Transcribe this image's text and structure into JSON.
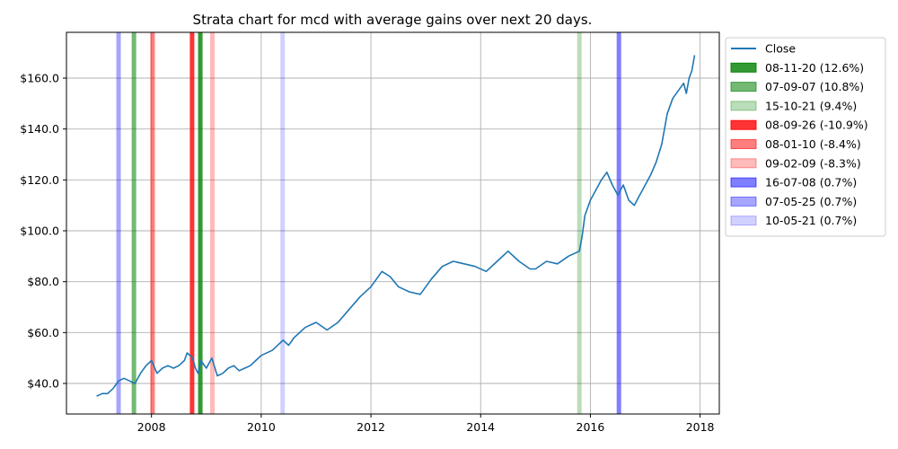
{
  "chart_data": {
    "type": "line",
    "title": "Strata chart for mcd with average gains over next 20 days.",
    "xlabel": "",
    "ylabel": "",
    "xlim": [
      2006.45,
      2018.35
    ],
    "ylim": [
      28,
      178
    ],
    "x_ticks": [
      {
        "value": 2008,
        "label": "2008"
      },
      {
        "value": 2010,
        "label": "2010"
      },
      {
        "value": 2012,
        "label": "2012"
      },
      {
        "value": 2014,
        "label": "2014"
      },
      {
        "value": 2016,
        "label": "2016"
      },
      {
        "value": 2018,
        "label": "2018"
      }
    ],
    "y_ticks": [
      {
        "value": 40,
        "label": "$40.0"
      },
      {
        "value": 60,
        "label": "$60.0"
      },
      {
        "value": 80,
        "label": "$80.0"
      },
      {
        "value": 100,
        "label": "$100.0"
      },
      {
        "value": 120,
        "label": "$120.0"
      },
      {
        "value": 140,
        "label": "$140.0"
      },
      {
        "value": 160,
        "label": "$160.0"
      }
    ],
    "grid": true,
    "legend_position": "outside-right-top",
    "series": [
      {
        "name": "Close",
        "color": "#1f77b4",
        "x": [
          2007.0,
          2007.1,
          2007.2,
          2007.3,
          2007.4,
          2007.5,
          2007.6,
          2007.7,
          2007.8,
          2007.9,
          2008.0,
          2008.1,
          2008.2,
          2008.3,
          2008.4,
          2008.5,
          2008.6,
          2008.65,
          2008.75,
          2008.8,
          2008.85,
          2008.9,
          2009.0,
          2009.1,
          2009.2,
          2009.3,
          2009.4,
          2009.5,
          2009.6,
          2009.7,
          2009.8,
          2009.9,
          2010.0,
          2010.2,
          2010.4,
          2010.5,
          2010.6,
          2010.8,
          2011.0,
          2011.2,
          2011.4,
          2011.6,
          2011.8,
          2012.0,
          2012.2,
          2012.35,
          2012.5,
          2012.7,
          2012.9,
          2013.1,
          2013.3,
          2013.5,
          2013.7,
          2013.9,
          2014.1,
          2014.3,
          2014.5,
          2014.7,
          2014.9,
          2015.0,
          2015.2,
          2015.4,
          2015.6,
          2015.8,
          2015.85,
          2015.9,
          2016.0,
          2016.1,
          2016.2,
          2016.3,
          2016.4,
          2016.5,
          2016.6,
          2016.7,
          2016.8,
          2016.9,
          2017.0,
          2017.1,
          2017.2,
          2017.3,
          2017.4,
          2017.5,
          2017.6,
          2017.7,
          2017.75,
          2017.8,
          2017.85,
          2017.9
        ],
        "values": [
          35,
          36,
          36,
          38,
          41,
          42,
          41,
          40,
          44,
          47,
          49,
          44,
          46,
          47,
          46,
          47,
          49,
          52,
          50,
          46,
          44,
          49,
          46,
          50,
          43,
          44,
          46,
          47,
          45,
          46,
          47,
          49,
          51,
          53,
          57,
          55,
          58,
          62,
          64,
          61,
          64,
          69,
          74,
          78,
          84,
          82,
          78,
          76,
          75,
          81,
          86,
          88,
          87,
          86,
          84,
          88,
          92,
          88,
          85,
          85,
          88,
          87,
          90,
          92,
          98,
          106,
          112,
          116,
          120,
          123,
          118,
          114,
          118,
          112,
          110,
          114,
          118,
          122,
          127,
          134,
          146,
          152,
          155,
          158,
          154,
          160,
          163,
          169
        ]
      }
    ],
    "strata": [
      {
        "label": "08-11-20 (12.6%)",
        "x": 2008.89,
        "color": "#008000",
        "opacity": 0.8
      },
      {
        "label": "07-09-07 (10.8%)",
        "x": 2007.68,
        "color": "#008000",
        "opacity": 0.55
      },
      {
        "label": "15-10-21 (9.4%)",
        "x": 2015.8,
        "color": "#008000",
        "opacity": 0.27
      },
      {
        "label": "08-09-26 (-10.9%)",
        "x": 2008.74,
        "color": "#ff0000",
        "opacity": 0.8
      },
      {
        "label": "08-01-10 (-8.4%)",
        "x": 2008.02,
        "color": "#ff0000",
        "opacity": 0.5
      },
      {
        "label": "09-02-09 (-8.3%)",
        "x": 2009.11,
        "color": "#ff0000",
        "opacity": 0.27
      },
      {
        "label": "16-07-08 (0.7%)",
        "x": 2016.52,
        "color": "#0000ff",
        "opacity": 0.5
      },
      {
        "label": "07-05-25 (0.7%)",
        "x": 2007.4,
        "color": "#0000ff",
        "opacity": 0.35
      },
      {
        "label": "10-05-21 (0.7%)",
        "x": 2010.39,
        "color": "#0000ff",
        "opacity": 0.18
      }
    ]
  }
}
